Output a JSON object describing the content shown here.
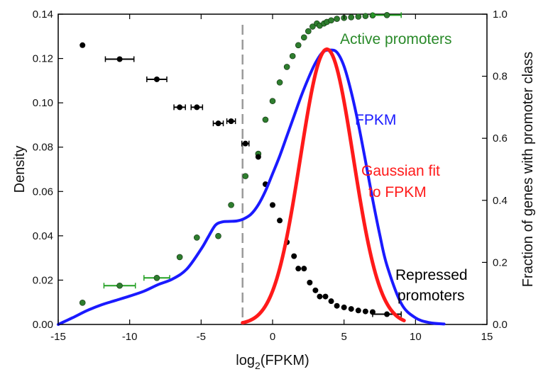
{
  "chart_data": {
    "type": "line",
    "xlabel": "log2(FPKM)",
    "xlabel_parts": {
      "base": "log",
      "sub": "2",
      "rest": "(FPKM)"
    },
    "ylabel": "Density",
    "y2label": "Fraction of genes with promoter class",
    "xlim": [
      -15,
      15
    ],
    "ylim": [
      0,
      0.14
    ],
    "y2lim": [
      0,
      1.0
    ],
    "x_ticks": [
      -15,
      -10,
      -5,
      0,
      5,
      10,
      15
    ],
    "x_tick_labels": [
      "-15",
      "-10",
      "-5",
      "0",
      "5",
      "10",
      "15"
    ],
    "y_ticks": [
      0,
      0.02,
      0.04,
      0.06,
      0.08,
      0.1,
      0.12,
      0.14
    ],
    "y_tick_labels": [
      "0.00",
      "0.02",
      "0.04",
      "0.06",
      "0.08",
      "0.10",
      "0.12",
      "0.14"
    ],
    "y2_ticks": [
      0,
      0.2,
      0.4,
      0.6,
      0.8,
      1.0
    ],
    "y2_tick_labels": [
      "0.0",
      "0.2",
      "0.4",
      "0.6",
      "0.8",
      "1.0"
    ],
    "threshold_x": -2.1,
    "colors": {
      "fpkm": "#1a1aff",
      "gaussian": "#ff1a1a",
      "active": "#2e7d2e",
      "active_label": "#2a8a2a",
      "repressed": "#000000",
      "threshold": "#9a9a9a"
    },
    "series": [
      {
        "name": "FPKM",
        "kind": "line",
        "axis": "left",
        "x": [
          -15,
          -14,
          -13,
          -12,
          -11,
          -10,
          -9,
          -8,
          -7,
          -6,
          -5,
          -4.5,
          -4,
          -3.5,
          -3,
          -2.5,
          -2,
          -1.5,
          -1,
          -0.5,
          0,
          0.5,
          1,
          1.5,
          2,
          2.5,
          3,
          3.5,
          4,
          4.5,
          5,
          5.5,
          6,
          6.5,
          7,
          7.5,
          8,
          9,
          10,
          11,
          12
        ],
        "y": [
          0.0,
          0.003,
          0.0062,
          0.0088,
          0.0108,
          0.0128,
          0.015,
          0.018,
          0.0205,
          0.025,
          0.034,
          0.0395,
          0.0448,
          0.0463,
          0.0465,
          0.0467,
          0.0477,
          0.0498,
          0.054,
          0.0602,
          0.068,
          0.076,
          0.085,
          0.094,
          0.103,
          0.111,
          0.118,
          0.1228,
          0.1238,
          0.1228,
          0.1165,
          0.105,
          0.0905,
          0.0738,
          0.0565,
          0.0405,
          0.0267,
          0.0095,
          0.003,
          0.0008,
          0.0002
        ]
      },
      {
        "name": "Gaussian fit to FPKM",
        "kind": "gaussian",
        "axis": "left",
        "mu": 3.8,
        "sigma": 1.85,
        "peak": 0.1242,
        "x_range": [
          -2.1,
          9.2
        ]
      },
      {
        "name": "Active promoters",
        "kind": "points",
        "axis": "right",
        "x": [
          -13.3,
          -10.7,
          -8.1,
          -6.5,
          -5.3,
          -3.8,
          -2.9,
          -1.9,
          -1.0,
          -0.5,
          0.0,
          0.5,
          1.0,
          1.4,
          1.8,
          2.2,
          2.5,
          2.8,
          3.1,
          3.3,
          3.6,
          3.8,
          4.1,
          4.5,
          5.0,
          5.5,
          6.0,
          6.5,
          7.0,
          8.0
        ],
        "y": [
          0.07,
          0.125,
          0.15,
          0.217,
          0.28,
          0.285,
          0.385,
          0.478,
          0.55,
          0.66,
          0.72,
          0.78,
          0.83,
          0.865,
          0.9,
          0.925,
          0.945,
          0.96,
          0.97,
          0.963,
          0.97,
          0.975,
          0.98,
          0.985,
          0.988,
          0.99,
          0.992,
          0.994,
          0.996,
          0.997
        ],
        "xerr": [
          0,
          1.1,
          0.9,
          0,
          0,
          0,
          0,
          0,
          0,
          0,
          0,
          0,
          0,
          0,
          0,
          0,
          0,
          0,
          0,
          0,
          0,
          0,
          0,
          0,
          0,
          0,
          0,
          0,
          0,
          1.0
        ]
      },
      {
        "name": "Repressed promoters",
        "kind": "points",
        "axis": "right",
        "x": [
          -13.3,
          -10.7,
          -8.1,
          -6.5,
          -5.3,
          -3.8,
          -2.9,
          -1.9,
          -1.0,
          -0.5,
          0.0,
          0.5,
          1.0,
          1.5,
          1.8,
          2.2,
          2.6,
          3.0,
          3.3,
          3.7,
          4.1,
          4.5,
          5.0,
          5.5,
          6.0,
          6.5,
          7.0,
          8.0
        ],
        "y": [
          0.9,
          0.855,
          0.79,
          0.7,
          0.7,
          0.648,
          0.655,
          0.583,
          0.54,
          0.452,
          0.385,
          0.335,
          0.265,
          0.22,
          0.18,
          0.18,
          0.135,
          0.11,
          0.09,
          0.09,
          0.075,
          0.06,
          0.055,
          0.05,
          0.045,
          0.042,
          0.04,
          0.033
        ],
        "xerr": [
          0,
          1.0,
          0.7,
          0.4,
          0.4,
          0.35,
          0.3,
          0.25,
          0,
          0,
          0,
          0,
          0,
          0,
          0,
          0,
          0,
          0,
          0,
          0,
          0,
          0,
          0,
          0,
          0,
          0,
          0,
          1.0
        ]
      }
    ],
    "annotations": {
      "active": "Active promoters",
      "fpkm": "FPKM",
      "gaussian_line1": "Gaussian fit",
      "gaussian_line2": "to FPKM",
      "repressed_line1": "Repressed",
      "repressed_line2": "promoters"
    }
  }
}
